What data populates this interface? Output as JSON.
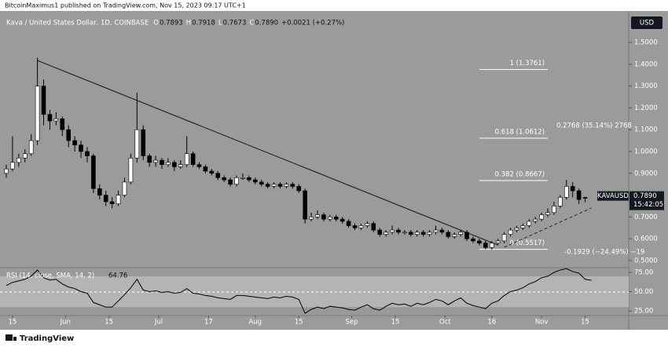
{
  "header": {
    "publisher": "BitcoinMaximus1 published on TradingView.com, Nov 15, 2023 09:17 UTC+1",
    "brand": "TradingView"
  },
  "chart_data": [
    {
      "type": "candlestick",
      "title": "Kava / United States Dollar, 1D, COINBASE",
      "legend_values": [
        {
          "key": "O",
          "text": "0.7893"
        },
        {
          "key": "H",
          "text": "0.7918"
        },
        {
          "key": "L",
          "text": "0.7673"
        },
        {
          "key": "C",
          "text": "0.7890"
        }
      ],
      "change": "+0.0021 (+0.27%)",
      "currency": "USD",
      "symbol": "KAVAUSD",
      "last_price": "0.7890",
      "countdown": "15:42:05",
      "up_color": "#ffffff",
      "down_color": "#000000",
      "ohlc": [
        [
          0.9,
          0.94,
          0.88,
          0.92
        ],
        [
          0.92,
          1.07,
          0.91,
          0.95
        ],
        [
          0.95,
          0.99,
          0.93,
          0.97
        ],
        [
          0.97,
          1.01,
          0.95,
          0.99
        ],
        [
          0.99,
          1.08,
          0.98,
          1.05
        ],
        [
          1.05,
          1.43,
          1.03,
          1.3
        ],
        [
          1.3,
          1.33,
          1.12,
          1.17
        ],
        [
          1.17,
          1.19,
          1.1,
          1.14
        ],
        [
          1.14,
          1.18,
          1.12,
          1.15
        ],
        [
          1.15,
          1.16,
          1.07,
          1.1
        ],
        [
          1.1,
          1.12,
          1.02,
          1.05
        ],
        [
          1.05,
          1.07,
          1.0,
          1.03
        ],
        [
          1.03,
          1.05,
          0.97,
          1.0
        ],
        [
          1.0,
          1.02,
          0.95,
          0.98
        ],
        [
          0.98,
          0.99,
          0.81,
          0.83
        ],
        [
          0.83,
          0.85,
          0.78,
          0.8
        ],
        [
          0.8,
          0.82,
          0.75,
          0.77
        ],
        [
          0.77,
          0.79,
          0.74,
          0.76
        ],
        [
          0.76,
          0.82,
          0.75,
          0.8
        ],
        [
          0.8,
          0.88,
          0.79,
          0.86
        ],
        [
          0.86,
          0.99,
          0.85,
          0.97
        ],
        [
          0.97,
          1.27,
          0.95,
          1.1
        ],
        [
          1.1,
          1.12,
          0.96,
          0.98
        ],
        [
          0.98,
          0.99,
          0.93,
          0.95
        ],
        [
          0.95,
          0.98,
          0.93,
          0.96
        ],
        [
          0.96,
          0.97,
          0.92,
          0.94
        ],
        [
          0.94,
          0.97,
          0.93,
          0.95
        ],
        [
          0.95,
          0.96,
          0.91,
          0.93
        ],
        [
          0.93,
          0.96,
          0.92,
          0.94
        ],
        [
          0.94,
          1.07,
          0.93,
          0.99
        ],
        [
          0.99,
          1.0,
          0.93,
          0.94
        ],
        [
          0.94,
          0.95,
          0.92,
          0.93
        ],
        [
          0.93,
          0.94,
          0.9,
          0.91
        ],
        [
          0.91,
          0.92,
          0.89,
          0.9
        ],
        [
          0.9,
          0.91,
          0.87,
          0.88
        ],
        [
          0.88,
          0.89,
          0.86,
          0.87
        ],
        [
          0.87,
          0.88,
          0.84,
          0.85
        ],
        [
          0.85,
          0.89,
          0.84,
          0.88
        ],
        [
          0.88,
          0.9,
          0.87,
          0.88
        ],
        [
          0.88,
          0.89,
          0.86,
          0.87
        ],
        [
          0.87,
          0.88,
          0.85,
          0.86
        ],
        [
          0.86,
          0.87,
          0.84,
          0.85
        ],
        [
          0.85,
          0.86,
          0.83,
          0.84
        ],
        [
          0.84,
          0.86,
          0.83,
          0.85
        ],
        [
          0.85,
          0.86,
          0.83,
          0.84
        ],
        [
          0.84,
          0.86,
          0.83,
          0.85
        ],
        [
          0.85,
          0.86,
          0.83,
          0.84
        ],
        [
          0.84,
          0.85,
          0.81,
          0.82
        ],
        [
          0.82,
          0.83,
          0.67,
          0.69
        ],
        [
          0.69,
          0.72,
          0.68,
          0.7
        ],
        [
          0.7,
          0.73,
          0.69,
          0.71
        ],
        [
          0.71,
          0.72,
          0.68,
          0.69
        ],
        [
          0.69,
          0.71,
          0.68,
          0.7
        ],
        [
          0.7,
          0.71,
          0.68,
          0.69
        ],
        [
          0.69,
          0.7,
          0.67,
          0.68
        ],
        [
          0.68,
          0.69,
          0.65,
          0.66
        ],
        [
          0.66,
          0.67,
          0.64,
          0.65
        ],
        [
          0.65,
          0.67,
          0.64,
          0.66
        ],
        [
          0.66,
          0.68,
          0.65,
          0.67
        ],
        [
          0.67,
          0.68,
          0.63,
          0.64
        ],
        [
          0.64,
          0.65,
          0.61,
          0.62
        ],
        [
          0.62,
          0.64,
          0.61,
          0.63
        ],
        [
          0.63,
          0.66,
          0.62,
          0.64
        ],
        [
          0.64,
          0.65,
          0.62,
          0.63
        ],
        [
          0.63,
          0.64,
          0.62,
          0.63
        ],
        [
          0.63,
          0.64,
          0.61,
          0.62
        ],
        [
          0.62,
          0.64,
          0.61,
          0.63
        ],
        [
          0.63,
          0.64,
          0.61,
          0.62
        ],
        [
          0.62,
          0.64,
          0.61,
          0.63
        ],
        [
          0.63,
          0.66,
          0.62,
          0.64
        ],
        [
          0.64,
          0.65,
          0.62,
          0.63
        ],
        [
          0.63,
          0.64,
          0.6,
          0.61
        ],
        [
          0.61,
          0.63,
          0.6,
          0.62
        ],
        [
          0.62,
          0.64,
          0.61,
          0.63
        ],
        [
          0.63,
          0.64,
          0.59,
          0.6
        ],
        [
          0.6,
          0.61,
          0.58,
          0.59
        ],
        [
          0.59,
          0.6,
          0.57,
          0.58
        ],
        [
          0.58,
          0.59,
          0.5517,
          0.56
        ],
        [
          0.56,
          0.59,
          0.55,
          0.58
        ],
        [
          0.58,
          0.6,
          0.57,
          0.59
        ],
        [
          0.59,
          0.63,
          0.58,
          0.62
        ],
        [
          0.62,
          0.65,
          0.61,
          0.64
        ],
        [
          0.64,
          0.66,
          0.63,
          0.65
        ],
        [
          0.65,
          0.67,
          0.64,
          0.66
        ],
        [
          0.66,
          0.69,
          0.65,
          0.68
        ],
        [
          0.68,
          0.7,
          0.67,
          0.69
        ],
        [
          0.69,
          0.72,
          0.68,
          0.71
        ],
        [
          0.71,
          0.74,
          0.7,
          0.72
        ],
        [
          0.72,
          0.77,
          0.71,
          0.75
        ],
        [
          0.75,
          0.8,
          0.74,
          0.79
        ],
        [
          0.79,
          0.87,
          0.78,
          0.84
        ],
        [
          0.84,
          0.86,
          0.79,
          0.82
        ],
        [
          0.82,
          0.83,
          0.76,
          0.78
        ],
        [
          0.7893,
          0.7918,
          0.7673,
          0.789
        ]
      ],
      "xlim": [
        0,
        100
      ],
      "xticks": [
        {
          "value": 1,
          "label": "15"
        },
        {
          "value": 9.5,
          "label": "Jun"
        },
        {
          "value": 16.5,
          "label": "15"
        },
        {
          "value": 24.5,
          "label": "Jul"
        },
        {
          "value": 32.5,
          "label": "17"
        },
        {
          "value": 40,
          "label": "Aug"
        },
        {
          "value": 47,
          "label": "15"
        },
        {
          "value": 55.5,
          "label": "Sep"
        },
        {
          "value": 62.5,
          "label": "15"
        },
        {
          "value": 70.5,
          "label": "Oct"
        },
        {
          "value": 78,
          "label": "16"
        },
        {
          "value": 86,
          "label": "Nov"
        },
        {
          "value": 93,
          "label": "15"
        }
      ],
      "ylim": [
        0.471,
        1.644
      ],
      "yticks": [
        {
          "value": 1.5,
          "label": "1.5000"
        },
        {
          "value": 1.4,
          "label": "1.4000"
        },
        {
          "value": 1.3,
          "label": "1.3000"
        },
        {
          "value": 1.2,
          "label": "1.2000"
        },
        {
          "value": 1.1,
          "label": "1.1000"
        },
        {
          "value": 1.0,
          "label": "1.0000"
        },
        {
          "value": 0.9,
          "label": "0.9000"
        },
        {
          "value": 0.8,
          "label": "0.8000"
        },
        {
          "value": 0.7,
          "label": "0.7000"
        },
        {
          "value": 0.6,
          "label": "0.6000"
        },
        {
          "value": 0.5,
          "label": "0.5000"
        }
      ],
      "trendline": {
        "x": [
          5,
          79
        ],
        "y": [
          1.417,
          0.571
        ]
      },
      "support_line": {
        "x": [
          80,
          94
        ],
        "y": [
          0.561,
          0.741
        ]
      },
      "fib": {
        "x": [
          76,
          87
        ],
        "levels": [
          {
            "value": 1.3761,
            "label": "1 (1.3761)"
          },
          {
            "value": 1.0612,
            "label": "0.618 (1.0612)"
          },
          {
            "value": 0.8667,
            "label": "0.382 (0.8667)"
          },
          {
            "value": 0.5517,
            "label": "0 (0.5517)"
          }
        ]
      },
      "annotations": [
        "0.2768 (35.14%) 2768",
        "-0.1929 (−24.49%) −19"
      ]
    },
    {
      "type": "line",
      "title": "RSI (14, close, SMA, 14, 2)",
      "last_value": "64.76",
      "color": "#000000",
      "band": [
        30,
        70
      ],
      "values": [
        58,
        62,
        64,
        66,
        70,
        78,
        68,
        65,
        66,
        60,
        56,
        54,
        50,
        48,
        36,
        33,
        30,
        30,
        38,
        46,
        55,
        66,
        52,
        50,
        51,
        49,
        50,
        48,
        49,
        54,
        48,
        47,
        45,
        44,
        42,
        41,
        40,
        45,
        45,
        44,
        43,
        42,
        41,
        43,
        42,
        44,
        43,
        40,
        22,
        27,
        30,
        28,
        31,
        30,
        29,
        27,
        26,
        30,
        33,
        28,
        26,
        31,
        35,
        33,
        34,
        31,
        35,
        33,
        36,
        40,
        38,
        33,
        38,
        42,
        35,
        32,
        30,
        28,
        35,
        38,
        45,
        50,
        52,
        55,
        60,
        63,
        68,
        70,
        75,
        78,
        80,
        76,
        74,
        66,
        64.76
      ],
      "xlim": [
        0,
        100
      ],
      "ylim": [
        19,
        80
      ],
      "yticks": [
        {
          "value": 75,
          "label": "75.00"
        },
        {
          "value": 50,
          "label": "50.00"
        },
        {
          "value": 25,
          "label": "25.00"
        }
      ]
    }
  ]
}
